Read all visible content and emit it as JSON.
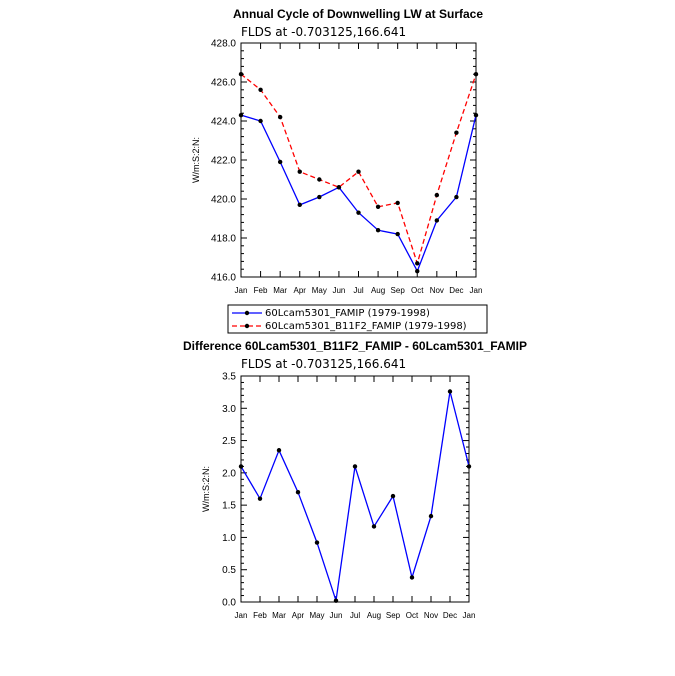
{
  "chart_data": [
    {
      "type": "line",
      "title": "Annual Cycle of Downwelling LW at Surface",
      "subtitle": "FLDS at -0.703125,166.641",
      "xlabel": "",
      "ylabel": "W/m:S:2:N:",
      "categories": [
        "Jan",
        "Feb",
        "Mar",
        "Apr",
        "May",
        "Jun",
        "Jul",
        "Aug",
        "Sep",
        "Oct",
        "Nov",
        "Dec",
        "Jan"
      ],
      "ylim": [
        416.0,
        428.0
      ],
      "yticks": [
        "416.0",
        "418.0",
        "420.0",
        "422.0",
        "424.0",
        "426.0",
        "428.0"
      ],
      "series": [
        {
          "name": "60Lcam5301_FAMIP (1979-1998)",
          "color": "#0000ff",
          "dash": "solid",
          "values": [
            424.3,
            424.0,
            421.9,
            419.7,
            420.1,
            420.6,
            419.3,
            418.4,
            418.2,
            416.3,
            418.9,
            420.1,
            424.3
          ]
        },
        {
          "name": "60Lcam5301_B11F2_FAMIP (1979-1998)",
          "color": "#ff0000",
          "dash": "dashed",
          "values": [
            426.4,
            425.6,
            424.2,
            421.4,
            421.0,
            420.6,
            421.4,
            419.6,
            419.8,
            416.7,
            420.2,
            423.4,
            426.4
          ]
        }
      ],
      "legend": "below"
    },
    {
      "type": "line",
      "title": "Difference 60Lcam5301_B11F2_FAMIP - 60Lcam5301_FAMIP",
      "subtitle": "FLDS at -0.703125,166.641",
      "xlabel": "",
      "ylabel": "W/m:S:2:N:",
      "categories": [
        "Jan",
        "Feb",
        "Mar",
        "Apr",
        "May",
        "Jun",
        "Jul",
        "Aug",
        "Sep",
        "Oct",
        "Nov",
        "Dec",
        "Jan"
      ],
      "ylim": [
        0.0,
        3.5
      ],
      "yticks": [
        "0.0",
        "0.5",
        "1.0",
        "1.5",
        "2.0",
        "2.5",
        "3.0",
        "3.5"
      ],
      "series": [
        {
          "name": "Difference",
          "color": "#0000ff",
          "dash": "solid",
          "values": [
            2.1,
            1.6,
            2.35,
            1.7,
            0.92,
            0.02,
            2.1,
            1.17,
            1.64,
            0.38,
            1.33,
            3.26,
            2.1
          ]
        }
      ],
      "legend": "none"
    }
  ]
}
